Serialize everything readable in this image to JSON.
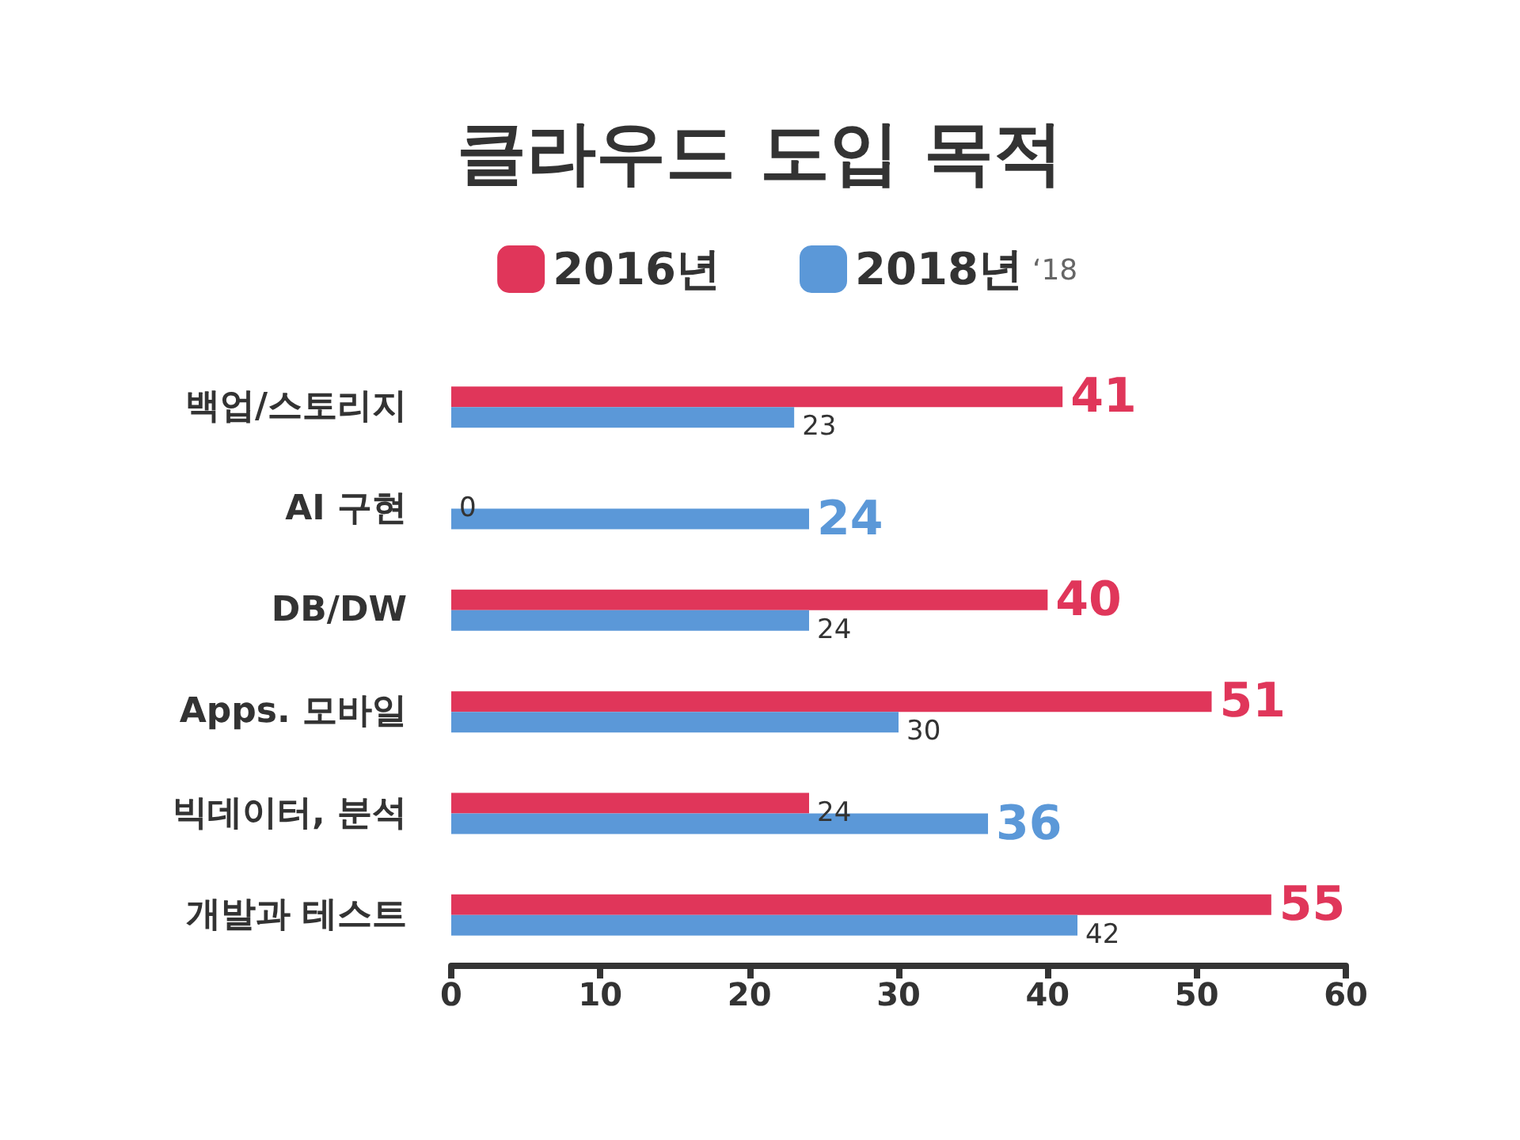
{
  "chart_data": {
    "type": "bar",
    "orientation": "horizontal",
    "title": "클라우드 도입 목적",
    "categories": [
      "백업/스토리지",
      "AI 구현",
      "DB/DW",
      "Apps. 모바일",
      "빅데이터, 분석",
      "개발과 테스트"
    ],
    "series": [
      {
        "name": "2016년",
        "color": "#e0365a",
        "values": [
          41,
          0,
          40,
          51,
          24,
          55
        ]
      },
      {
        "name": "2018년",
        "color": "#5b98d8",
        "values": [
          23,
          24,
          24,
          30,
          36,
          42
        ]
      }
    ],
    "xlim": [
      0,
      60
    ],
    "xticks": [
      0,
      10,
      20,
      30,
      40,
      50,
      60
    ],
    "grid": false,
    "legend": "top",
    "data_labels": true,
    "annotations": [
      "‘18"
    ]
  }
}
